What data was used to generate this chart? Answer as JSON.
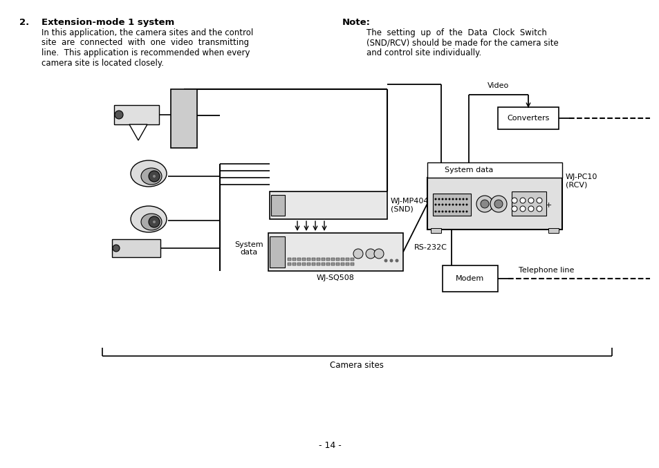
{
  "bg_color": "#ffffff",
  "text_color": "#000000",
  "title_num": "2.",
  "title_bold": "Extension-mode 1 system",
  "body_lines": [
    "In this application, the camera sites and the control",
    "site  are  connected  with  one  video  transmitting",
    "line.  This application is recommended when every",
    "camera site is located closely."
  ],
  "note_title": "Note:",
  "note_lines": [
    "The  setting  up  of  the  Data  Clock  Switch",
    "(SND/RCV) should be made for the camera site",
    "and control site individually."
  ],
  "page_num": "- 14 -",
  "label_wjmp404": "WJ-MP404\n(SND)",
  "label_wjsq508": "WJ-SQ508",
  "label_wjpc10": "WJ-PC10\n(RCV)",
  "label_converters": "Converters",
  "label_modem": "Modem",
  "label_video": "Video",
  "label_system_data_left": "System\ndata",
  "label_system_data_top": "System data",
  "label_rs232c": "RS-232C",
  "label_telephone": "Telephone line",
  "label_camera_sites": "Camera sites"
}
